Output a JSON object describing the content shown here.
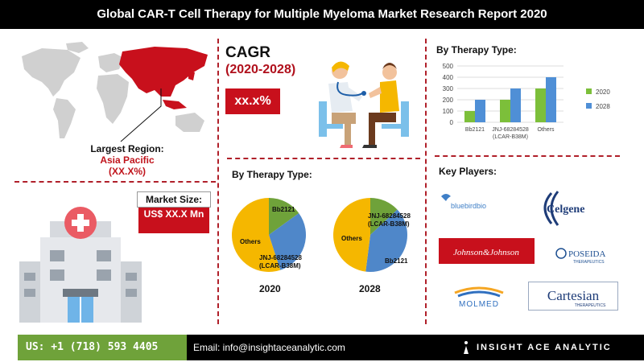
{
  "title": "Global CAR-T Cell Therapy for Multiple Myeloma Market Research Report 2020",
  "region": {
    "label": "Largest Region:",
    "name": "Asia Pacific",
    "value": "(XX.X%)"
  },
  "market_size": {
    "label": "Market Size:",
    "value": "US$ XX.X Mn"
  },
  "cagr": {
    "title": "CAGR",
    "years": "(2020-2028)",
    "value": "xx.x%"
  },
  "pie_section_title": "By Therapy Type:",
  "bar_section_title": "By Therapy Type:",
  "key_players_title": "Key Players:",
  "key_players": [
    "bluebirdbio",
    "Celgene",
    "Johnson&Johnson",
    "POSEIDA",
    "THERAPEUTICS",
    "MOLMED",
    "Cartesian",
    "THERAPEUTICS"
  ],
  "colors": {
    "accent_red": "#c8101c",
    "green": "#6fa23a",
    "blue": "#4f87c9",
    "gold": "#f5b700",
    "bar_green": "#7cbf3a",
    "bar_blue": "#4f8fd6"
  },
  "footer": {
    "phone": "US: +1 (718) 593 4405",
    "email": "Email: info@insightaceanalytic.com",
    "brand": "INSIGHT ACE ANALYTIC"
  },
  "chart_data": [
    {
      "type": "pie",
      "title": "2020",
      "slices": [
        {
          "label": "Bb2121",
          "value": 15,
          "color": "#6fa23a"
        },
        {
          "label": "JNJ-68284528 (LCAR-B38M)",
          "value": 30,
          "color": "#4f87c9"
        },
        {
          "label": "Others",
          "value": 55,
          "color": "#f5b700"
        }
      ]
    },
    {
      "type": "pie",
      "title": "2028",
      "slices": [
        {
          "label": "JNJ-68284528 (LCAR-B38M)",
          "value": 13,
          "color": "#6fa23a"
        },
        {
          "label": "Bb2121",
          "value": 39,
          "color": "#4f87c9"
        },
        {
          "label": "Others",
          "value": 48,
          "color": "#f5b700"
        }
      ]
    },
    {
      "type": "bar",
      "categories": [
        "Bb2121",
        "JNJ-68284528 (LCAR-B38M)",
        "Others"
      ],
      "series": [
        {
          "name": "2020",
          "values": [
            100,
            200,
            300
          ],
          "color": "#7cbf3a"
        },
        {
          "name": "2028",
          "values": [
            200,
            300,
            400
          ],
          "color": "#4f8fd6"
        }
      ],
      "ylim": [
        0,
        500
      ],
      "yticks": [
        0,
        100,
        200,
        300,
        400,
        500
      ],
      "legend": "right"
    }
  ]
}
